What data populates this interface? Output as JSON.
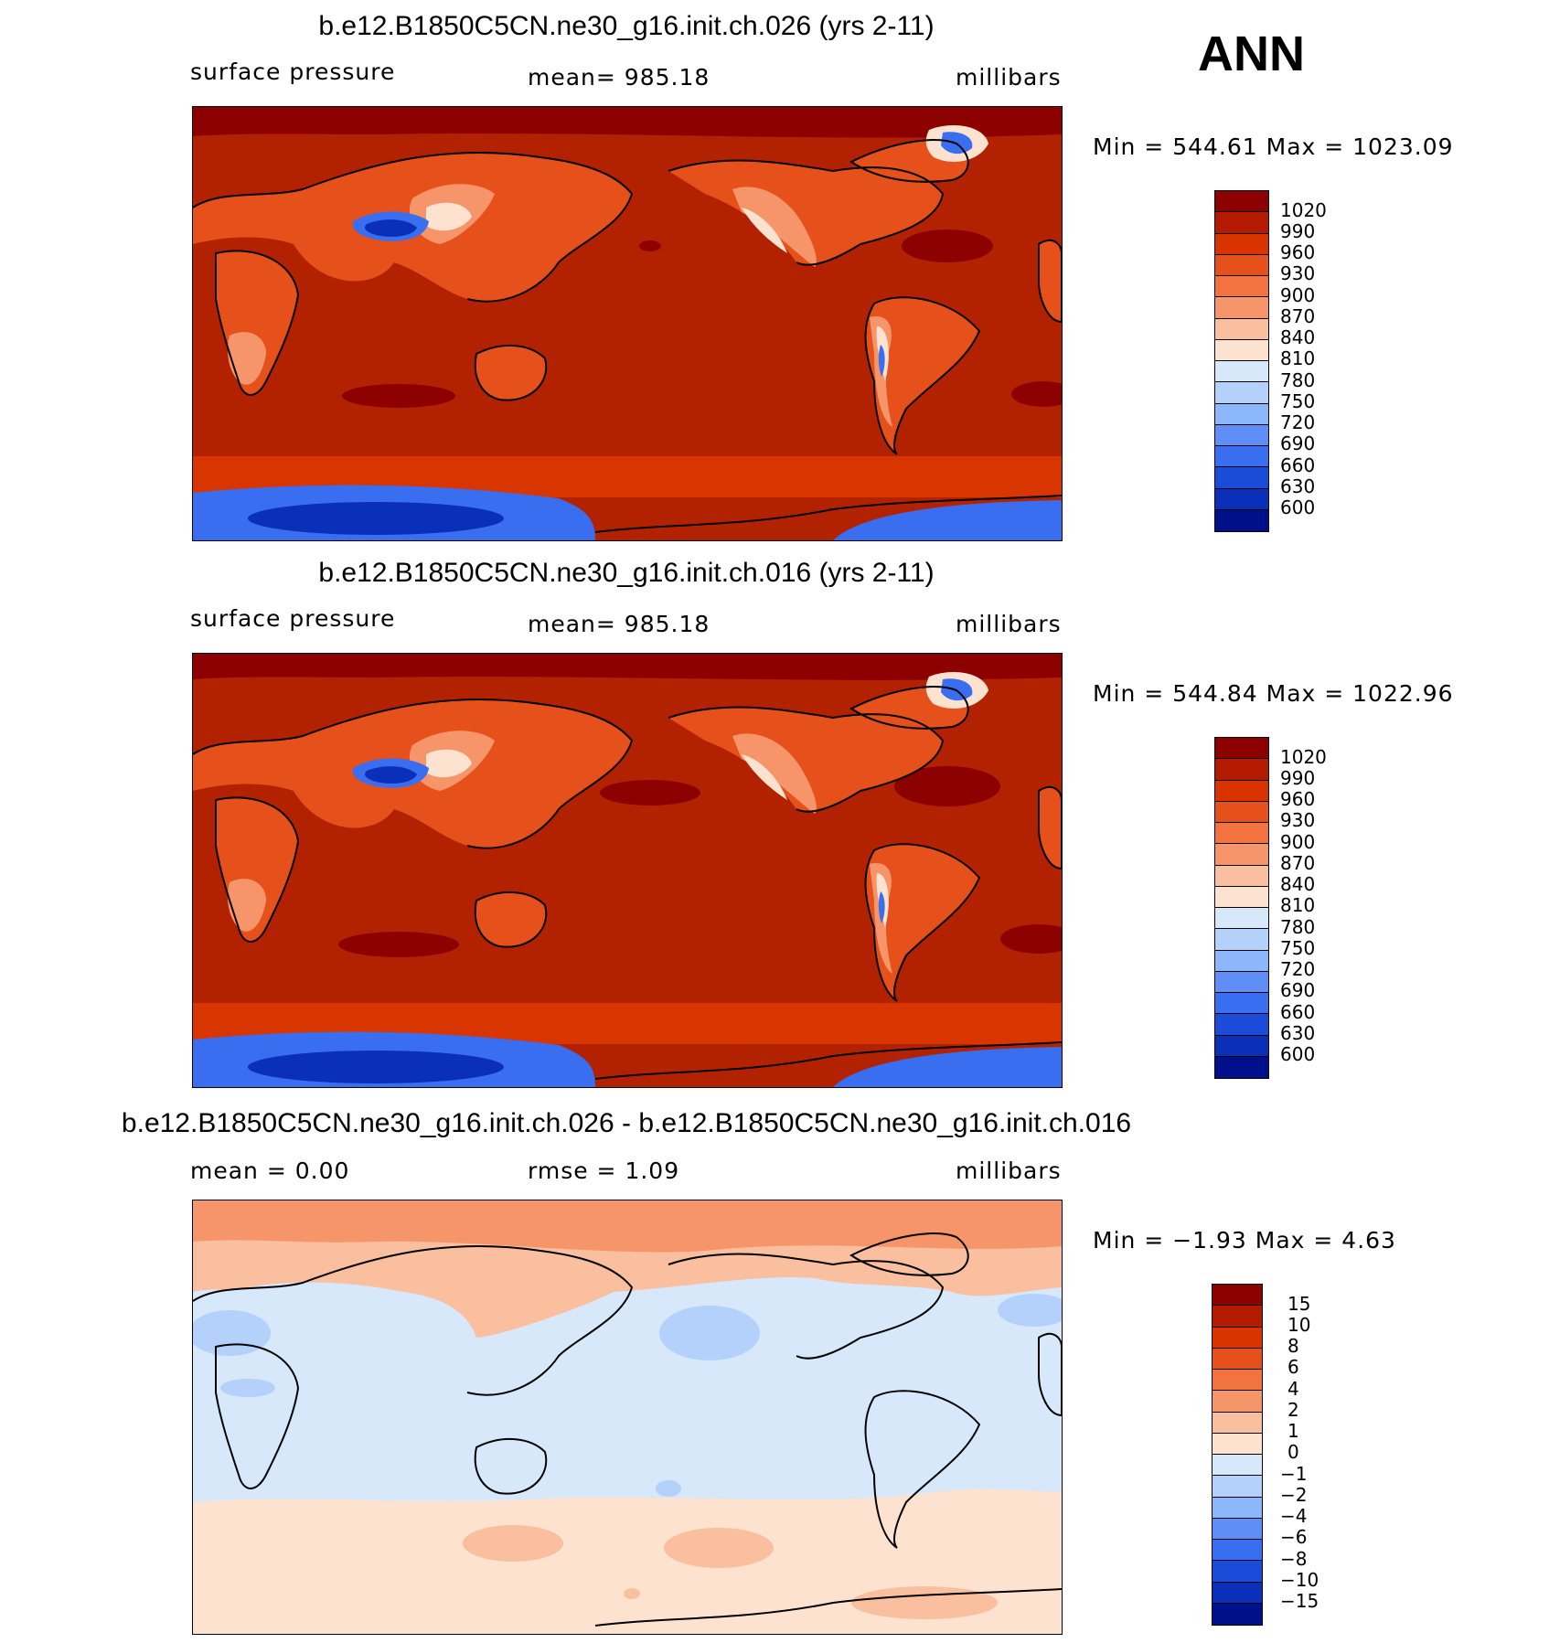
{
  "season": "ANN",
  "panels": [
    {
      "title": "b.e12.B1850C5CN.ne30_g16.init.ch.026 (yrs 2-11)",
      "variable": "surface pressure",
      "stat": "mean=  985.18",
      "units": "millibars",
      "minmax": "Min  =  544.61  Max  =  1023.09",
      "colorbar": {
        "labels": [
          "1020",
          "990",
          "960",
          "930",
          "900",
          "870",
          "840",
          "810",
          "780",
          "750",
          "720",
          "690",
          "660",
          "630",
          "600"
        ],
        "colors": [
          "#8c0000",
          "#b31a00",
          "#d93300",
          "#e6501a",
          "#f27340",
          "#f7956a",
          "#fabf9e",
          "#fde3cf",
          "#d6e8fa",
          "#b3d1fb",
          "#8db7fb",
          "#5f8ff6",
          "#3a6ef0",
          "#1a4cd9",
          "#0a2fb8",
          "#000f8a"
        ]
      },
      "map_colors": {
        "ocean": "#b32200",
        "highs": "#8c0000",
        "southern_band": "#d93500",
        "antarctic_sea": "#3a6ef0",
        "antarctic_deep": "#0a2fb8",
        "land": "#e6501a",
        "mid_land": "#f7956a",
        "high_land": "#fde3cf",
        "plateau": "#3a6ef0",
        "plateau_core": "#0a2fb8"
      }
    },
    {
      "title": "b.e12.B1850C5CN.ne30_g16.init.ch.016 (yrs 2-11)",
      "variable": "surface pressure",
      "stat": "mean=  985.18",
      "units": "millibars",
      "minmax": "Min  =  544.84  Max  =  1022.96",
      "colorbar": {
        "labels": [
          "1020",
          "990",
          "960",
          "930",
          "900",
          "870",
          "840",
          "810",
          "780",
          "750",
          "720",
          "690",
          "660",
          "630",
          "600"
        ],
        "colors": [
          "#8c0000",
          "#b31a00",
          "#d93300",
          "#e6501a",
          "#f27340",
          "#f7956a",
          "#fabf9e",
          "#fde3cf",
          "#d6e8fa",
          "#b3d1fb",
          "#8db7fb",
          "#5f8ff6",
          "#3a6ef0",
          "#1a4cd9",
          "#0a2fb8",
          "#000f8a"
        ]
      },
      "map_colors": {
        "ocean": "#b32200",
        "highs": "#8c0000",
        "southern_band": "#d93500",
        "antarctic_sea": "#3a6ef0",
        "antarctic_deep": "#0a2fb8",
        "land": "#e6501a",
        "mid_land": "#f7956a",
        "high_land": "#fde3cf",
        "plateau": "#3a6ef0",
        "plateau_core": "#0a2fb8"
      }
    },
    {
      "title": "b.e12.B1850C5CN.ne30_g16.init.ch.026 - b.e12.B1850C5CN.ne30_g16.init.ch.016",
      "variable": "mean  =     0.00",
      "stat": "rmse  =     1.09",
      "units": "millibars",
      "minmax": "Min  =   −1.93  Max  =     4.63",
      "colorbar": {
        "labels": [
          "15",
          "10",
          "8",
          "6",
          "4",
          "2",
          "1",
          "0",
          "−1",
          "−2",
          "−4",
          "−6",
          "−8",
          "−10",
          "−15"
        ],
        "colors": [
          "#8c0000",
          "#b31a00",
          "#d93300",
          "#e6501a",
          "#f27340",
          "#f7956a",
          "#fabf9e",
          "#fde3cf",
          "#d6e8fa",
          "#b3d1fb",
          "#8db7fb",
          "#5f8ff6",
          "#3a6ef0",
          "#1a4cd9",
          "#0a2fb8",
          "#000f8a"
        ]
      },
      "map_colors": {
        "ocean": "#d6e8fa",
        "north_band": "#f7956a",
        "north_mid": "#fabf9e",
        "south_band": "#fde3cf",
        "south_blob": "#fabf9e",
        "blue_blob": "#b3d1fb"
      }
    }
  ]
}
